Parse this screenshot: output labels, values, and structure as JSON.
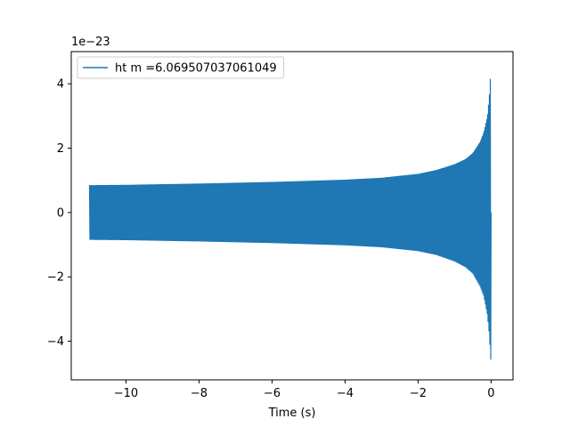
{
  "chart_data": {
    "type": "line",
    "title": "",
    "xlabel": "Time (s)",
    "ylabel": "",
    "y_offset_label": "1e−23",
    "xlim": [
      -11.5,
      0.6
    ],
    "ylim": [
      -5.2,
      5.0
    ],
    "x_ticks": [
      {
        "value": -10,
        "label": "−10"
      },
      {
        "value": -8,
        "label": "−8"
      },
      {
        "value": -6,
        "label": "−6"
      },
      {
        "value": -4,
        "label": "−4"
      },
      {
        "value": -2,
        "label": "−2"
      },
      {
        "value": 0,
        "label": "0"
      }
    ],
    "y_ticks": [
      {
        "value": -4,
        "label": "−4"
      },
      {
        "value": -2,
        "label": "−2"
      },
      {
        "value": 0,
        "label": "0"
      },
      {
        "value": 2,
        "label": "2"
      },
      {
        "value": 4,
        "label": "4"
      }
    ],
    "grid": false,
    "legend_position": "top-left",
    "color": "#1f77b4",
    "series": [
      {
        "name": "ht m =6.069507037061049",
        "envelope": {
          "x": [
            -11.0,
            -10.0,
            -8.0,
            -6.0,
            -4.0,
            -3.0,
            -2.0,
            -1.5,
            -1.0,
            -0.7,
            -0.5,
            -0.3,
            -0.2,
            -0.1,
            -0.05,
            -0.02,
            0.0
          ],
          "upper": [
            0.85,
            0.86,
            0.9,
            0.95,
            1.02,
            1.08,
            1.2,
            1.32,
            1.5,
            1.66,
            1.85,
            2.2,
            2.5,
            3.0,
            3.6,
            4.2,
            4.6
          ],
          "lower": [
            -0.85,
            -0.86,
            -0.9,
            -0.95,
            -1.02,
            -1.08,
            -1.2,
            -1.32,
            -1.52,
            -1.7,
            -1.9,
            -2.3,
            -2.6,
            -3.2,
            -3.8,
            -4.4,
            -4.75
          ]
        }
      }
    ]
  }
}
